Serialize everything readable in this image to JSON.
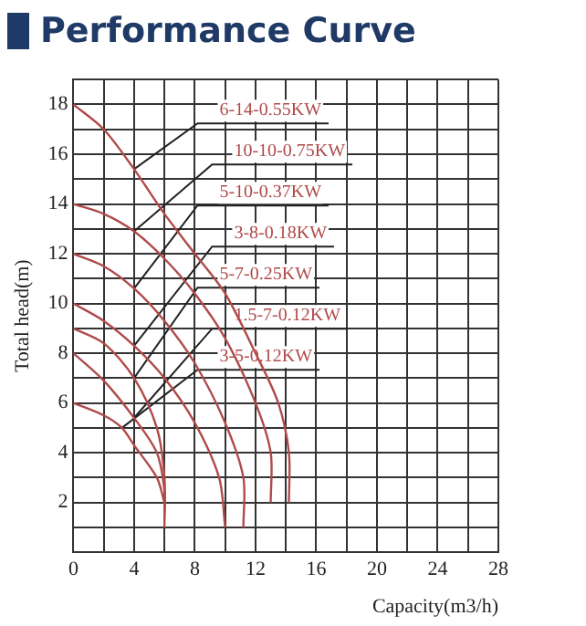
{
  "chart_data": {
    "type": "line",
    "title": "Performance Curve",
    "xlabel": "Capacity(m3/h)",
    "ylabel": "Total head(m)",
    "xlim": [
      0,
      28
    ],
    "ylim": [
      0,
      19
    ],
    "xticks": [
      0,
      {
        "value": 2,
        "label": null
      },
      4,
      {
        "value": 6,
        "label": null
      },
      8,
      {
        "value": 10,
        "label": null
      },
      12,
      {
        "value": 14,
        "label": null
      },
      16,
      {
        "value": 18,
        "label": null
      },
      20,
      {
        "value": 22,
        "label": null
      },
      24,
      {
        "value": 26,
        "label": null
      },
      28
    ],
    "yticks": [
      {
        "value": 1,
        "label": null
      },
      2,
      {
        "value": 3,
        "label": null
      },
      4,
      {
        "value": 5,
        "label": null
      },
      6,
      {
        "value": 7,
        "label": null
      },
      8,
      {
        "value": 9,
        "label": null
      },
      10,
      {
        "value": 11,
        "label": null
      },
      12,
      {
        "value": 13,
        "label": null
      },
      14,
      {
        "value": 15,
        "label": null
      },
      16,
      {
        "value": 17,
        "label": null
      },
      18,
      {
        "value": 19,
        "label": null
      }
    ],
    "grid": true,
    "legend": false,
    "series": [
      {
        "name": "6-14-0.55KW",
        "color": "#b04a4a",
        "x": [
          0,
          2,
          4,
          6,
          8,
          10,
          12,
          13.5,
          14.2,
          14.2
        ],
        "values": [
          18,
          17,
          15.4,
          13.6,
          12,
          10.4,
          8,
          6,
          4,
          2
        ]
      },
      {
        "name": "10-10-0.75KW",
        "color": "#b04a4a",
        "x": [
          0,
          2,
          4,
          6,
          8,
          10,
          12,
          13,
          13
        ],
        "values": [
          14,
          13.6,
          12.9,
          11.8,
          10.4,
          8.6,
          6,
          4,
          2
        ]
      },
      {
        "name": "5-10-0.37KW",
        "color": "#b04a4a",
        "x": [
          0,
          2,
          4,
          6,
          8,
          10,
          11.2,
          11.2
        ],
        "values": [
          12,
          11.5,
          10.6,
          9.3,
          7.6,
          5.2,
          3,
          1
        ]
      },
      {
        "name": "3-8-0.18KW",
        "color": "#b04a4a",
        "x": [
          0,
          2,
          4,
          6,
          8,
          9.6,
          10
        ],
        "values": [
          10,
          9.3,
          8.3,
          7,
          5.2,
          3,
          1
        ]
      },
      {
        "name": "5-7-0.25KW",
        "color": "#b04a4a",
        "x": [
          0,
          2,
          4,
          5.5,
          6,
          6
        ],
        "values": [
          9,
          8.4,
          7,
          5,
          3,
          1
        ]
      },
      {
        "name": "1.5-7-0.12KW",
        "color": "#b04a4a",
        "x": [
          0,
          2,
          4,
          5.5,
          6,
          6
        ],
        "values": [
          8,
          6.9,
          5.4,
          4,
          2.5,
          1.5
        ]
      },
      {
        "name": "3-5-0.12KW",
        "color": "#b04a4a",
        "x": [
          0,
          2,
          3.2,
          4,
          5.5,
          6
        ],
        "values": [
          6,
          5.5,
          5,
          4.3,
          3,
          2
        ]
      }
    ]
  }
}
